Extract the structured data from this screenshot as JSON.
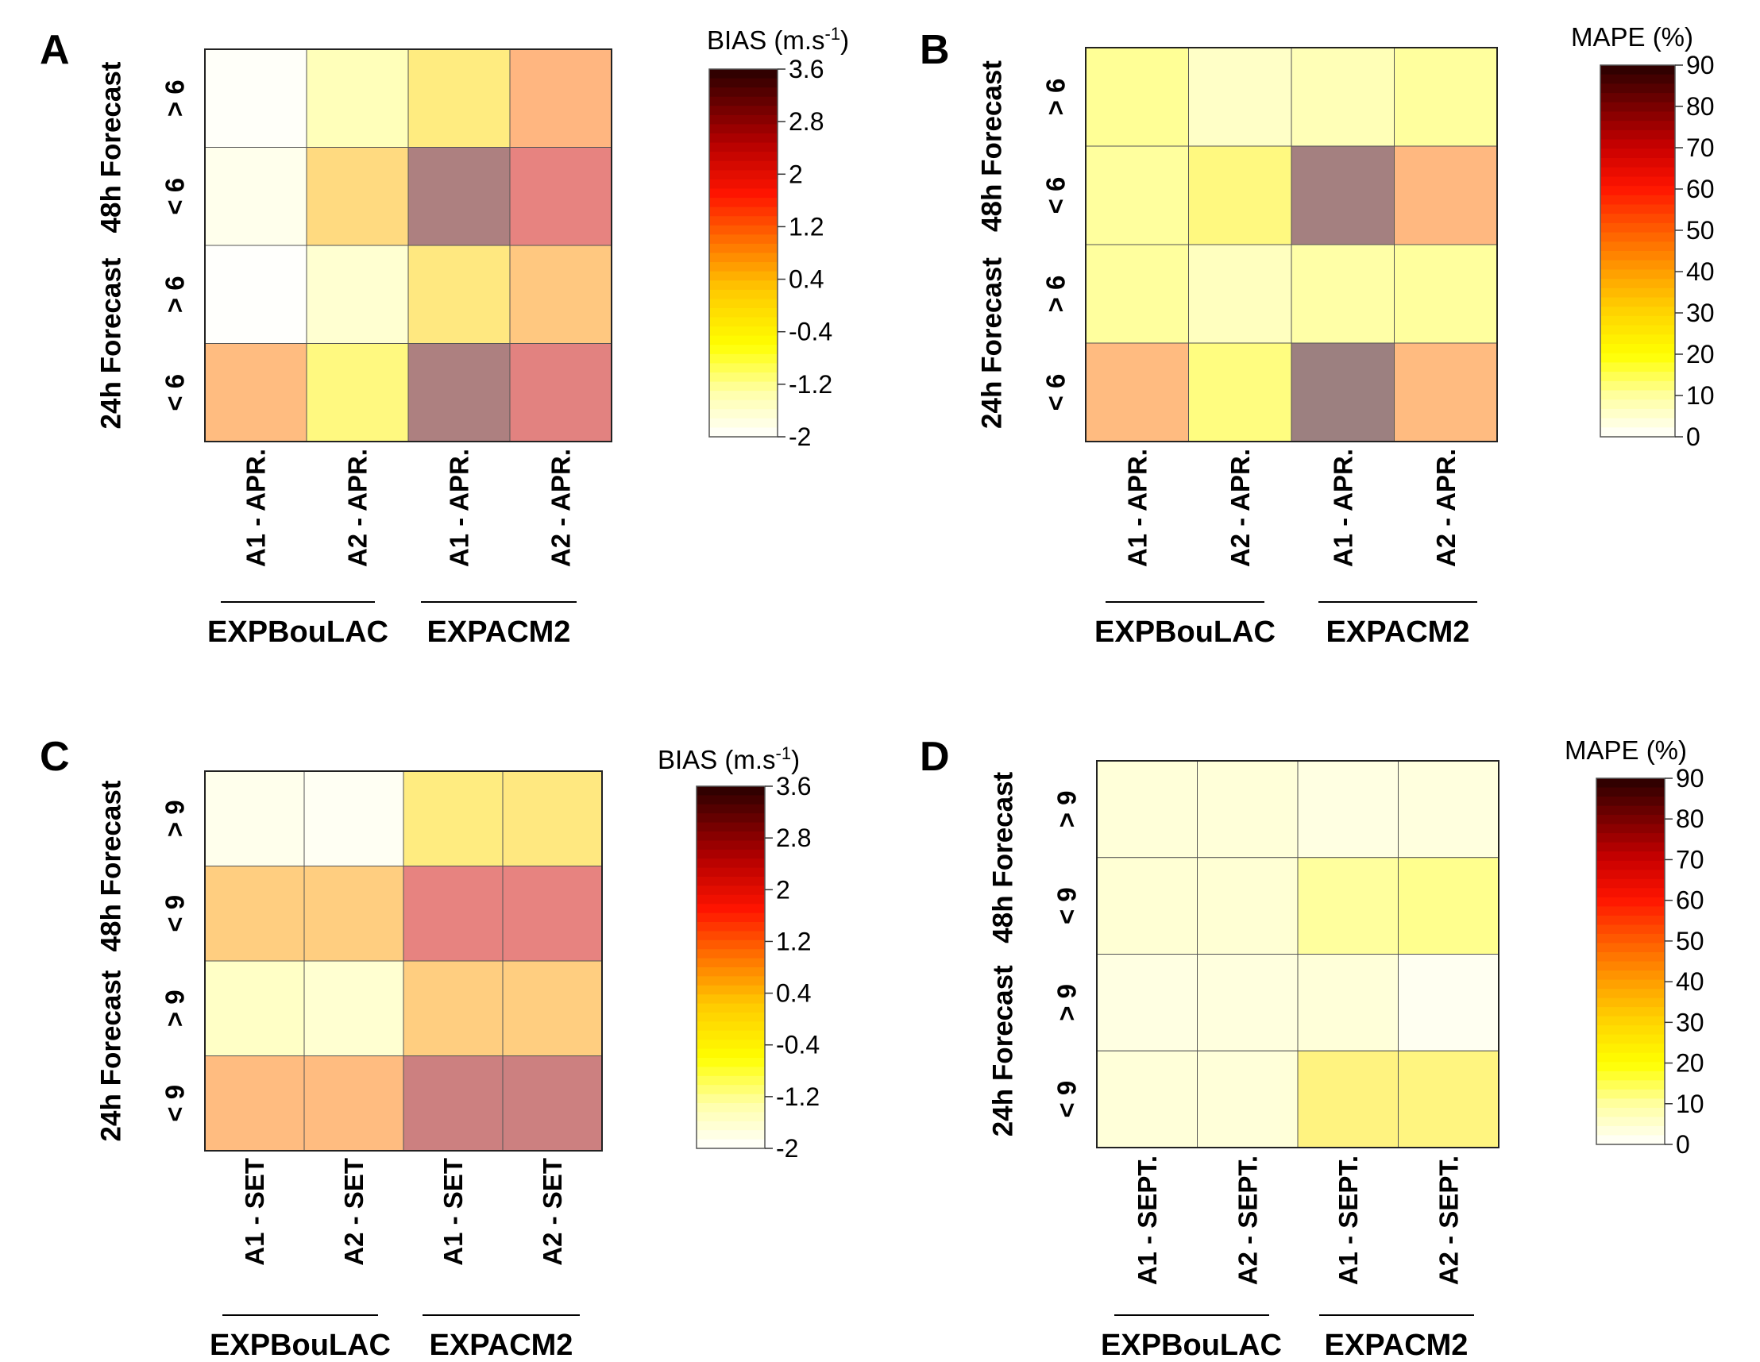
{
  "chart_data": [
    {
      "type": "heatmap",
      "panel": "A",
      "metric": "BIAS",
      "colorbar_title": "BIAS (m.s",
      "colorbar_title_sup": "-1",
      "colorbar_title_end": ")",
      "colorbar_ticks": [
        "3.6",
        "2.8",
        "2",
        "1.2",
        "0.4",
        "-0.4",
        "-1.2",
        "-2"
      ],
      "colorbar_range": [
        -2,
        3.6
      ],
      "rows": [
        "> 6",
        "< 6",
        "> 6",
        "< 6"
      ],
      "row_groups": [
        "48h Forecast",
        "24h Forecast"
      ],
      "columns": [
        "A1 - APR.",
        "A2 - APR.",
        "A1 - APR.",
        "A2 - APR."
      ],
      "column_groups": [
        "EXPBouLAC",
        "EXPACM2"
      ],
      "values": [
        [
          -1.9,
          -1.1,
          0.0,
          1.0
        ],
        [
          -1.7,
          0.4,
          3.2,
          2.2
        ],
        [
          -1.95,
          -1.3,
          0.1,
          0.7
        ],
        [
          0.9,
          -0.4,
          3.2,
          2.3
        ]
      ]
    },
    {
      "type": "heatmap",
      "panel": "B",
      "metric": "MAPE",
      "colorbar_title": "MAPE (%)",
      "colorbar_title_sup": "",
      "colorbar_title_end": "",
      "colorbar_ticks": [
        "90",
        "80",
        "70",
        "60",
        "50",
        "40",
        "30",
        "20",
        "10",
        "0"
      ],
      "colorbar_range": [
        0,
        90
      ],
      "rows": [
        "> 6",
        "< 6",
        "> 6",
        "< 6"
      ],
      "row_groups": [
        "48h Forecast",
        "24h Forecast"
      ],
      "columns": [
        "A1 - APR.",
        "A2 - APR.",
        "A1 - APR.",
        "A2 - APR."
      ],
      "column_groups": [
        "EXPBouLAC",
        "EXPACM2"
      ],
      "values": [
        [
          17,
          11,
          13,
          16
        ],
        [
          16,
          23,
          86,
          47
        ],
        [
          16,
          12,
          15,
          16
        ],
        [
          46,
          21,
          88,
          46
        ]
      ]
    },
    {
      "type": "heatmap",
      "panel": "C",
      "metric": "BIAS",
      "colorbar_title": "BIAS (m.s",
      "colorbar_title_sup": "-1",
      "colorbar_title_end": ")",
      "colorbar_ticks": [
        "3.6",
        "2.8",
        "2",
        "1.2",
        "0.4",
        "-0.4",
        "-1.2",
        "-2"
      ],
      "colorbar_range": [
        -2,
        3.6
      ],
      "rows": [
        "> 9",
        "< 9",
        "> 9",
        "< 9"
      ],
      "row_groups": [
        "48h Forecast",
        "24h Forecast"
      ],
      "columns": [
        "A1 - SET",
        "A2 - SET",
        "A1 - SET",
        "A2 - SET"
      ],
      "column_groups": [
        "EXPBouLAC",
        "EXPACM2"
      ],
      "values": [
        [
          -1.7,
          -1.8,
          0.0,
          0.1
        ],
        [
          0.6,
          0.6,
          2.2,
          2.2
        ],
        [
          -1.2,
          -1.3,
          0.6,
          0.6
        ],
        [
          0.9,
          0.9,
          2.7,
          2.7
        ]
      ]
    },
    {
      "type": "heatmap",
      "panel": "D",
      "metric": "MAPE",
      "colorbar_title": "MAPE (%)",
      "colorbar_title_sup": "",
      "colorbar_title_end": "",
      "colorbar_ticks": [
        "90",
        "80",
        "70",
        "60",
        "50",
        "40",
        "30",
        "20",
        "10",
        "0"
      ],
      "colorbar_range": [
        0,
        90
      ],
      "rows": [
        "> 9",
        "< 9",
        "> 9",
        "< 9"
      ],
      "row_groups": [
        "48h Forecast",
        "24h Forecast"
      ],
      "columns": [
        "A1 - SEPT.",
        "A2 - SEPT.",
        "A1 - SEPT.",
        "A2 - SEPT."
      ],
      "column_groups": [
        "EXPBouLAC",
        "EXPACM2"
      ],
      "values": [
        [
          8,
          8,
          6,
          7
        ],
        [
          9,
          9,
          16,
          18
        ],
        [
          6,
          7,
          8,
          3
        ],
        [
          8,
          8,
          26,
          25
        ]
      ]
    }
  ]
}
